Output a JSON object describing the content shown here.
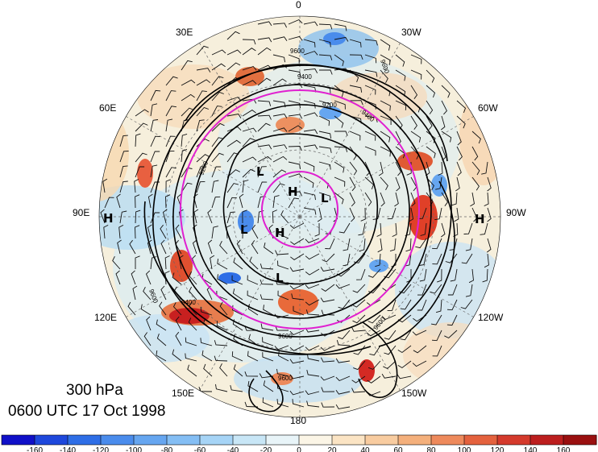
{
  "map": {
    "level": "300 hPa",
    "valid_time": "0600 UTC 17 Oct 1998",
    "longitude_labels": [
      {
        "text": "0",
        "deg": 0
      },
      {
        "text": "30W",
        "deg": -30
      },
      {
        "text": "60W",
        "deg": -60
      },
      {
        "text": "90W",
        "deg": -90
      },
      {
        "text": "120W",
        "deg": -120
      },
      {
        "text": "150W",
        "deg": -150
      },
      {
        "text": "180",
        "deg": 180
      },
      {
        "text": "150E",
        "deg": 150
      },
      {
        "text": "120E",
        "deg": 120
      },
      {
        "text": "90E",
        "deg": 90
      },
      {
        "text": "60E",
        "deg": 60
      },
      {
        "text": "30E",
        "deg": 30
      }
    ],
    "pressure_centers": [
      {
        "text": "H",
        "id": "h1"
      },
      {
        "text": "H",
        "id": "h2"
      },
      {
        "text": "H",
        "id": "h3"
      },
      {
        "text": "H",
        "id": "h4"
      },
      {
        "text": "L",
        "id": "l1"
      },
      {
        "text": "L",
        "id": "l2"
      },
      {
        "text": "L",
        "id": "l3"
      },
      {
        "text": "L",
        "id": "l4"
      }
    ],
    "contour_labels": [
      "9600",
      "9400",
      "9200",
      "9200",
      "9400",
      "9600",
      "9600",
      "9400",
      "9600",
      "9600",
      "9600"
    ],
    "colors": {
      "contour": "#000000",
      "reference_circles": "#e020d0",
      "positive_strong": "#d22020",
      "negative_strong": "#2060d0"
    }
  },
  "colorbar": {
    "tick_labels": [
      "-160",
      "-140",
      "-120",
      "-100",
      "-80",
      "-60",
      "-40",
      "-20",
      "0",
      "20",
      "40",
      "60",
      "80",
      "100",
      "120",
      "140",
      "160"
    ],
    "colors": [
      "#1010c8",
      "#1e48dc",
      "#2e6ee6",
      "#4a8cec",
      "#66a6f0",
      "#84bef4",
      "#a6d4f6",
      "#c8e6f6",
      "#e8f4f8",
      "#fbf5e6",
      "#fbe4c4",
      "#f8cca0",
      "#f4b07c",
      "#ee8a5c",
      "#e4623e",
      "#d43a2c",
      "#bc1e1e",
      "#9a1010"
    ]
  }
}
